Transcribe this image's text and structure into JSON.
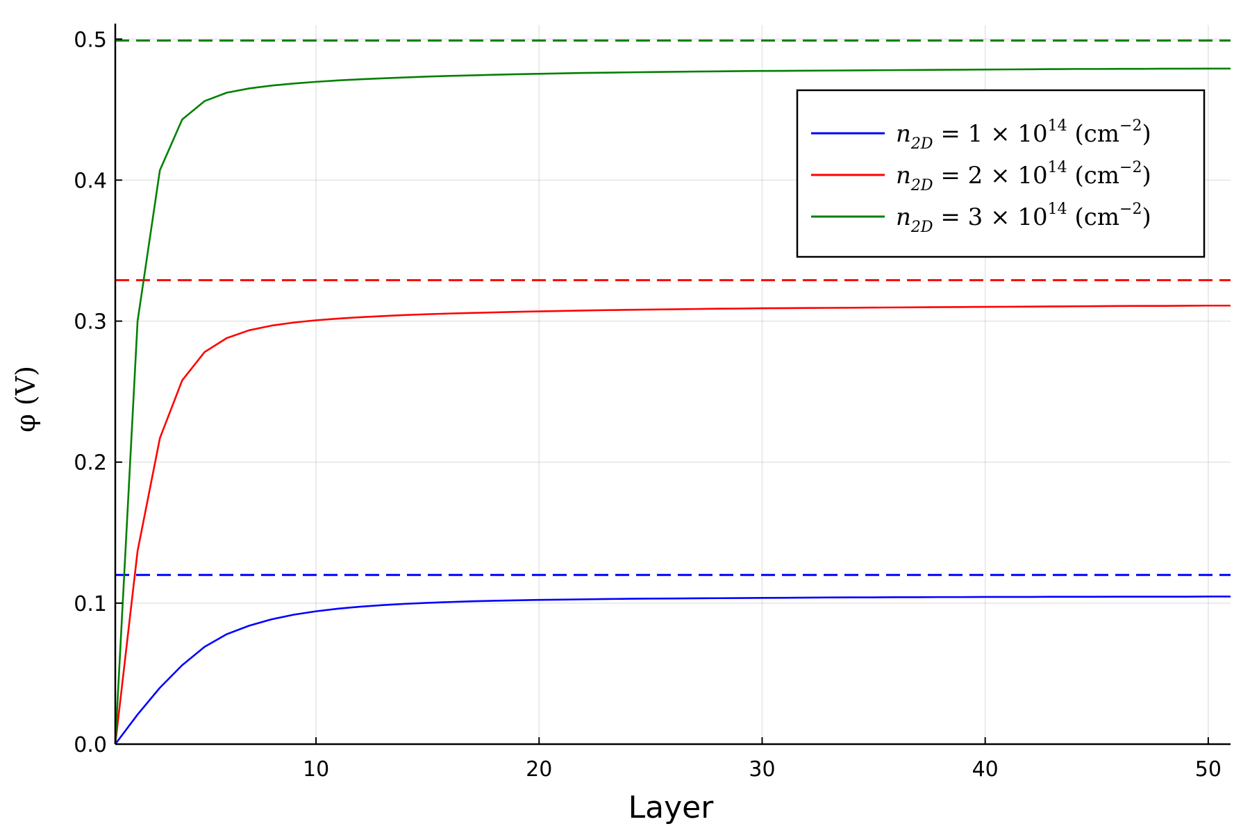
{
  "chart_data": {
    "type": "line",
    "xlabel": "Layer",
    "ylabel": "φ (V)",
    "xlim": [
      1,
      51
    ],
    "ylim": [
      0,
      0.51
    ],
    "xticks": [
      10,
      20,
      30,
      40,
      50
    ],
    "xtick_labels": [
      "10",
      "20",
      "30",
      "40",
      "50"
    ],
    "yticks": [
      0.0,
      0.1,
      0.2,
      0.3,
      0.4,
      0.5
    ],
    "ytick_labels": [
      "0.0",
      "0.1",
      "0.2",
      "0.3",
      "0.4",
      "0.5"
    ],
    "grid": true,
    "legend_position": "top-right",
    "x": [
      1,
      2,
      3,
      4,
      5,
      6,
      7,
      8,
      9,
      10,
      11,
      12,
      13,
      14,
      15,
      16,
      17,
      18,
      19,
      20,
      21,
      22,
      23,
      24,
      25,
      26,
      27,
      28,
      29,
      30,
      31,
      32,
      33,
      34,
      35,
      36,
      37,
      38,
      39,
      40,
      41,
      42,
      43,
      44,
      45,
      46,
      47,
      48,
      49,
      50,
      51
    ],
    "series": [
      {
        "name": "n_{2D} = 1 × 10^{14} (cm^{-2})",
        "name_parts": [
          "n",
          "2D",
          " = 1 × 10",
          "14",
          " (cm",
          "−2",
          ")"
        ],
        "color": "#0000ff",
        "values": [
          0.0,
          0.021,
          0.04,
          0.056,
          0.069,
          0.078,
          0.084,
          0.0885,
          0.0918,
          0.0942,
          0.0961,
          0.0975,
          0.0986,
          0.0995,
          0.1002,
          0.1008,
          0.1013,
          0.1017,
          0.102,
          0.1023,
          0.1025,
          0.1027,
          0.1029,
          0.1031,
          0.1032,
          0.1033,
          0.1034,
          0.1035,
          0.1036,
          0.1037,
          0.1038,
          0.1039,
          0.104,
          0.1041,
          0.1041,
          0.1042,
          0.1042,
          0.1043,
          0.1043,
          0.1044,
          0.1044,
          0.1044,
          0.1045,
          0.1045,
          0.1045,
          0.1046,
          0.1046,
          0.1046,
          0.1046,
          0.1047,
          0.1047
        ]
      },
      {
        "name": "n_{2D} = 2 × 10^{14} (cm^{-2})",
        "name_parts": [
          "n",
          "2D",
          " = 2 × 10",
          "14",
          " (cm",
          "−2",
          ")"
        ],
        "color": "#ff0000",
        "values": [
          0.0,
          0.137,
          0.217,
          0.258,
          0.278,
          0.288,
          0.2935,
          0.2968,
          0.299,
          0.3006,
          0.3018,
          0.3028,
          0.3036,
          0.3043,
          0.3049,
          0.3054,
          0.3058,
          0.3062,
          0.3066,
          0.3069,
          0.3072,
          0.3075,
          0.3078,
          0.308,
          0.3082,
          0.3084,
          0.3086,
          0.3088,
          0.3089,
          0.3091,
          0.3092,
          0.3093,
          0.3094,
          0.3095,
          0.3096,
          0.3097,
          0.3098,
          0.3099,
          0.31,
          0.3101,
          0.3102,
          0.3103,
          0.3104,
          0.3105,
          0.3106,
          0.3107,
          0.3108,
          0.3108,
          0.3109,
          0.311,
          0.311
        ]
      },
      {
        "name": "n_{2D} = 3 × 10^{14} (cm^{-2})",
        "name_parts": [
          "n",
          "2D",
          " = 3 × 10",
          "14",
          " (cm",
          "−2",
          ")"
        ],
        "color": "#008000",
        "values": [
          0.0,
          0.3,
          0.407,
          0.443,
          0.456,
          0.462,
          0.465,
          0.467,
          0.4685,
          0.4697,
          0.4707,
          0.4715,
          0.4722,
          0.4728,
          0.4734,
          0.4739,
          0.4743,
          0.4747,
          0.4751,
          0.4754,
          0.4757,
          0.476,
          0.4762,
          0.4764,
          0.4766,
          0.4768,
          0.477,
          0.4771,
          0.4773,
          0.4774,
          0.4775,
          0.4776,
          0.4777,
          0.4778,
          0.4779,
          0.478,
          0.4781,
          0.4782,
          0.4783,
          0.4784,
          0.4785,
          0.4786,
          0.4787,
          0.4788,
          0.4788,
          0.4789,
          0.4789,
          0.479,
          0.479,
          0.4791,
          0.4791
        ]
      }
    ],
    "reference_lines": [
      {
        "y": 0.12,
        "color": "#0000ff",
        "style": "dashed"
      },
      {
        "y": 0.329,
        "color": "#ff0000",
        "style": "dashed"
      },
      {
        "y": 0.499,
        "color": "#008000",
        "style": "dashed"
      }
    ]
  }
}
